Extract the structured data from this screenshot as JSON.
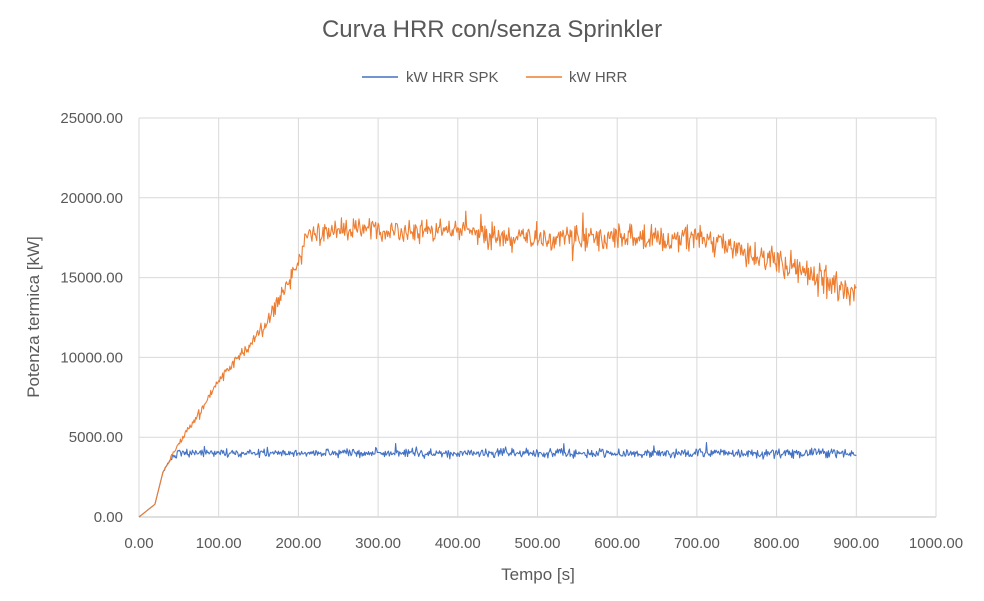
{
  "chart_data": {
    "type": "line",
    "title": "Curva HRR con/senza Sprinkler",
    "xlabel": "Tempo [s]",
    "ylabel": "Potenza termica [kW]",
    "xlim": [
      0,
      1000
    ],
    "ylim": [
      0,
      25000
    ],
    "x_ticks": [
      "0.00",
      "100.00",
      "200.00",
      "300.00",
      "400.00",
      "500.00",
      "600.00",
      "700.00",
      "800.00",
      "900.00",
      "1000.00"
    ],
    "y_ticks": [
      "0.00",
      "5000.00",
      "10000.00",
      "15000.00",
      "20000.00",
      "25000.00"
    ],
    "grid": true,
    "legend_position": "top-center",
    "series": [
      {
        "name": "kW HRR SPK",
        "color": "#4472c4",
        "x": [
          0,
          20,
          30,
          40,
          50,
          100,
          150,
          200,
          250,
          300,
          350,
          400,
          450,
          500,
          550,
          600,
          650,
          700,
          750,
          800,
          850,
          900
        ],
        "y": [
          0,
          800,
          2800,
          3700,
          4000,
          4000,
          4000,
          4000,
          4000,
          4000,
          4000,
          4000,
          4000,
          4000,
          4000,
          4000,
          4000,
          4000,
          4000,
          4000,
          4000,
          4000
        ]
      },
      {
        "name": "kW HRR",
        "color": "#ed7d31",
        "x": [
          0,
          20,
          30,
          40,
          50,
          75,
          100,
          125,
          150,
          175,
          200,
          210,
          250,
          300,
          350,
          400,
          450,
          500,
          550,
          600,
          650,
          700,
          750,
          800,
          850,
          900
        ],
        "y": [
          0,
          800,
          2800,
          3700,
          4600,
          6500,
          8500,
          10000,
          11500,
          13500,
          16000,
          17500,
          18000,
          18000,
          17800,
          18000,
          17500,
          17500,
          17500,
          17500,
          17500,
          17500,
          17000,
          16000,
          15000,
          13800
        ]
      }
    ]
  }
}
